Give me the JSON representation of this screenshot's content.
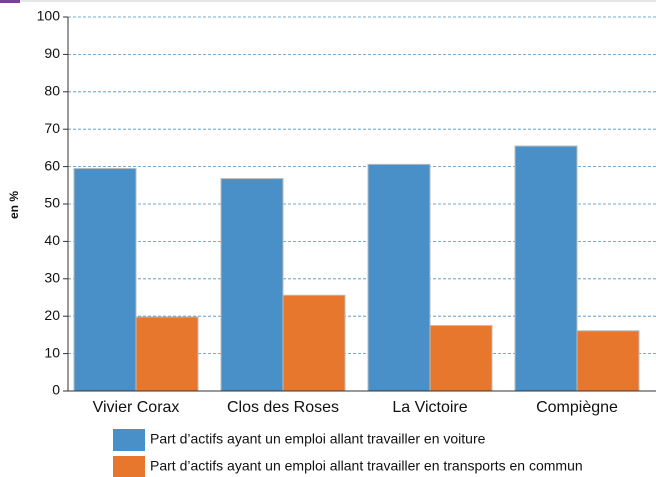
{
  "chart_data": {
    "type": "bar",
    "y_label": "en %",
    "categories": [
      "Vivier Corax",
      "Clos des Roses",
      "La Victoire",
      "Compiègne"
    ],
    "series": [
      {
        "name": "Part d’actifs ayant un emploi allant travailler en voiture",
        "color": "#4a90c8",
        "values": [
          59.5,
          56.8,
          60.6,
          65.5
        ]
      },
      {
        "name": "Part d’actifs ayant un emploi allant travailler en transports en commun",
        "color": "#e8772e",
        "values": [
          19.8,
          25.6,
          17.5,
          16.1
        ]
      }
    ],
    "ylim": [
      0,
      100
    ],
    "yticks": [
      0,
      10,
      20,
      30,
      40,
      50,
      60,
      70,
      80,
      90,
      100
    ],
    "grid": true
  }
}
